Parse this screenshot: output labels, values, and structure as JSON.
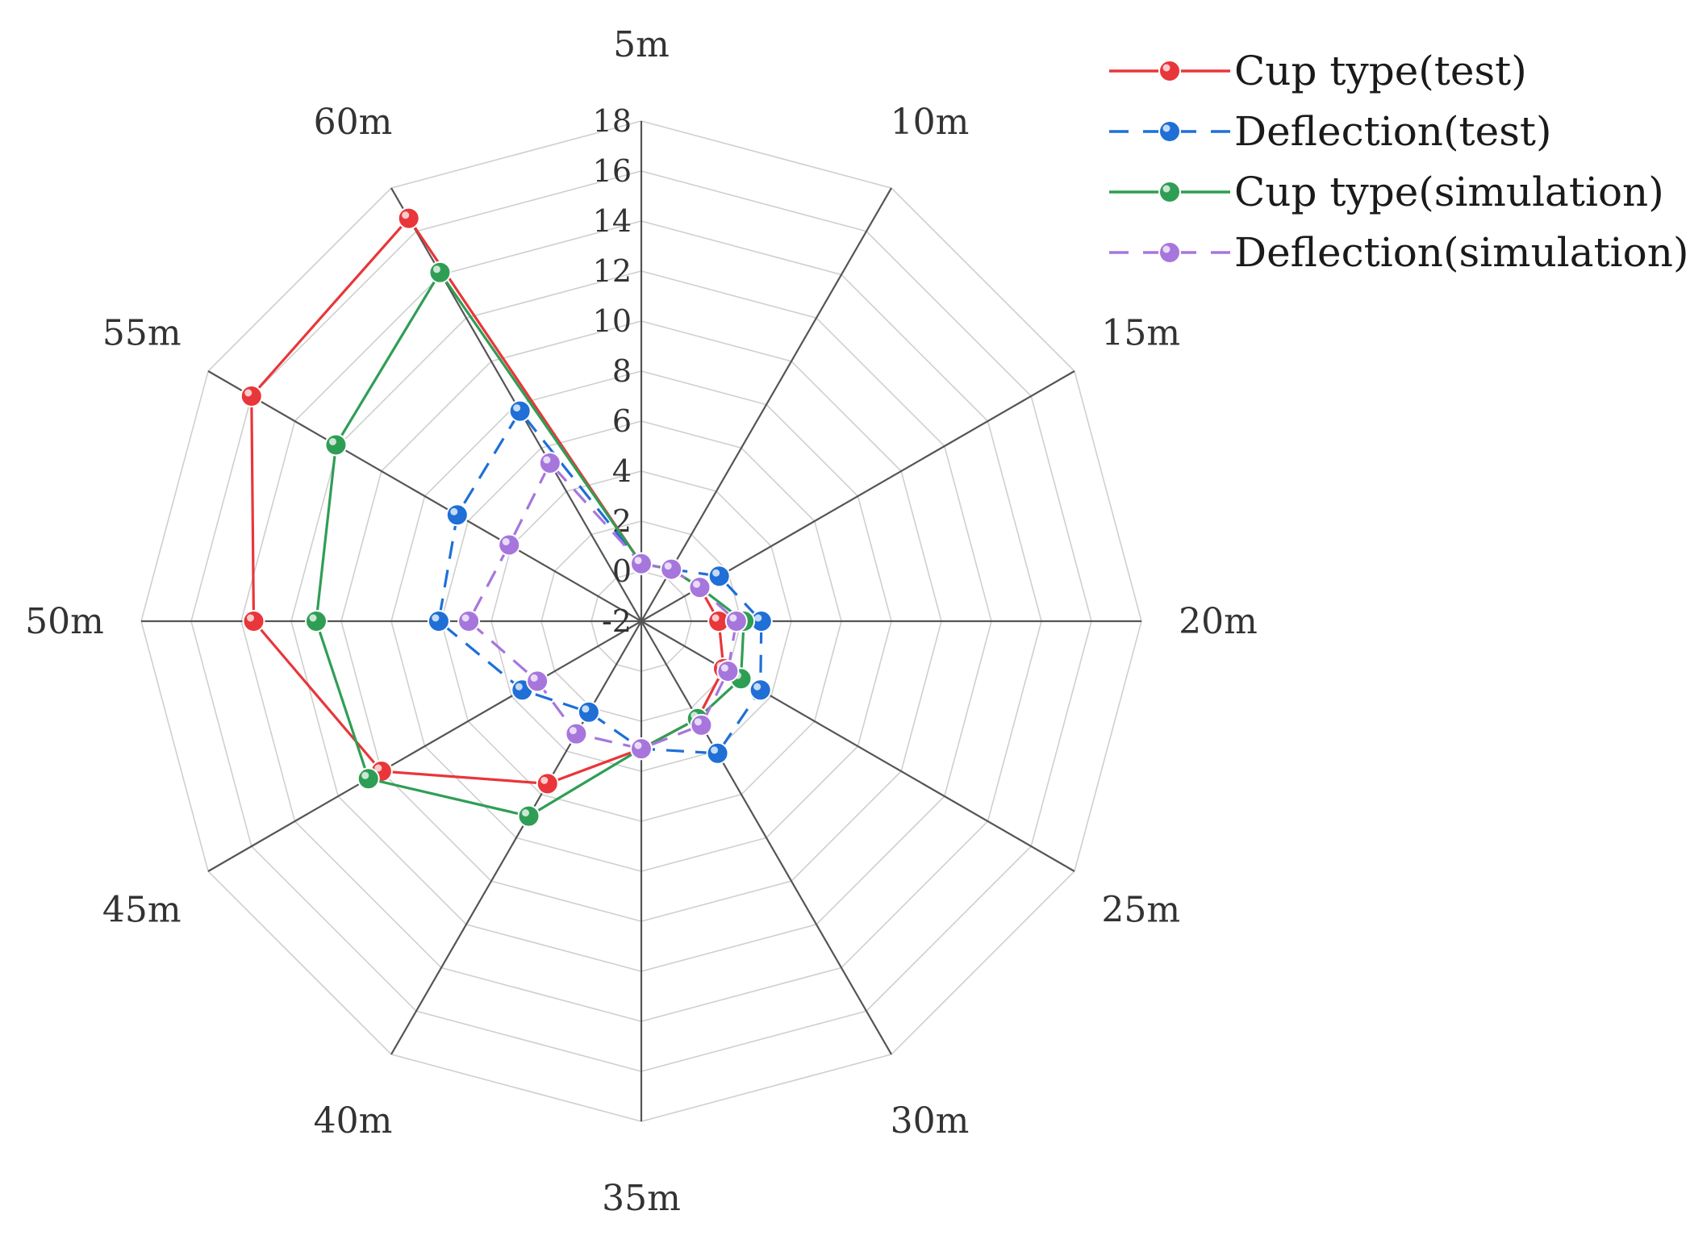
{
  "chart_data": {
    "type": "radar",
    "title": "",
    "categories": [
      "5m",
      "10m",
      "15m",
      "20m",
      "25m",
      "30m",
      "35m",
      "40m",
      "45m",
      "50m",
      "55m",
      "60m"
    ],
    "radial_axis": {
      "range": [
        -2,
        18
      ],
      "ticks": [
        "-2",
        "0",
        "2",
        "4",
        "6",
        "8",
        "10",
        "12",
        "14",
        "16",
        "18"
      ],
      "tick_values": [
        -2,
        0,
        2,
        4,
        6,
        8,
        10,
        12,
        14,
        16,
        18
      ],
      "grid": true
    },
    "legend_position": "top-right",
    "series": [
      {
        "name": "Cup type(test)",
        "color": "#e8363a",
        "dash": "solid",
        "values": [
          0.3,
          0.4,
          0.7,
          1.1,
          1.8,
          2.5,
          3.1,
          5.5,
          10.0,
          13.5,
          16.0,
          16.6
        ]
      },
      {
        "name": "Deflection(test)",
        "color": "#1f6fd6",
        "dash": "dashed",
        "values": [
          0.3,
          0.4,
          1.6,
          2.8,
          3.5,
          4.1,
          3.1,
          2.2,
          3.5,
          6.1,
          6.5,
          7.7
        ]
      },
      {
        "name": "Cup type(simulation)",
        "color": "#2f9e55",
        "dash": "solid",
        "values": [
          0.3,
          0.4,
          0.7,
          2.1,
          2.6,
          2.5,
          3.1,
          7.0,
          10.6,
          11.0,
          12.1,
          14.1
        ]
      },
      {
        "name": "Deflection(simulation)",
        "color": "#a776dc",
        "dash": "dashed",
        "values": [
          0.3,
          0.4,
          0.7,
          1.8,
          2.0,
          2.8,
          3.1,
          3.2,
          2.8,
          4.9,
          4.1,
          5.3
        ]
      }
    ]
  }
}
